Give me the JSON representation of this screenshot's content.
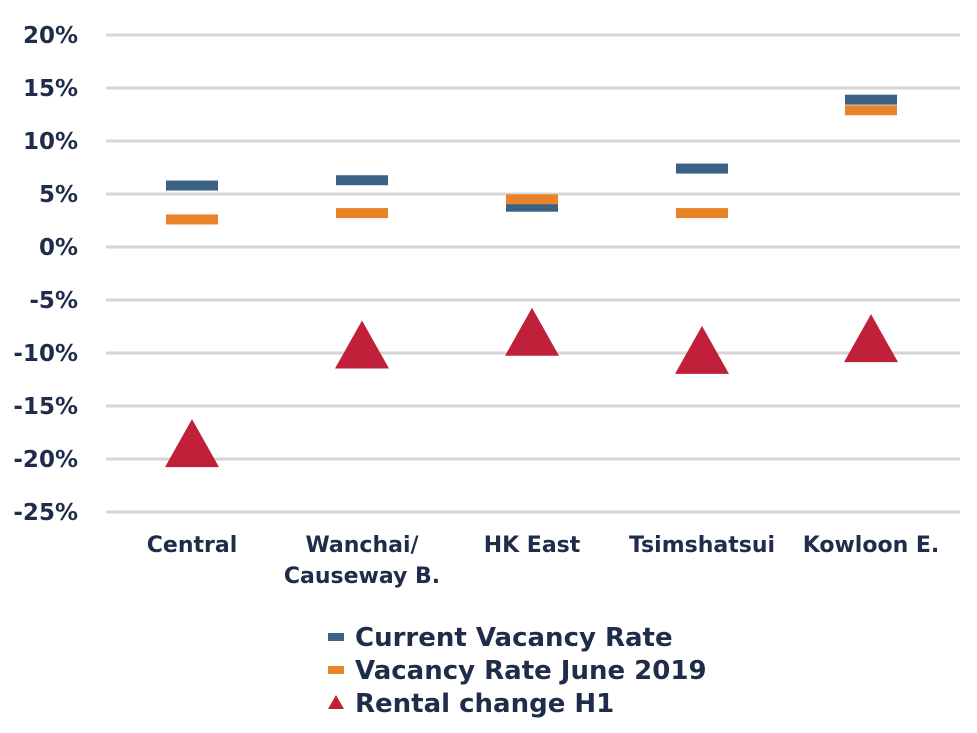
{
  "chart_data": {
    "type": "scatter",
    "categories": [
      [
        "Central"
      ],
      [
        "Wanchai/",
        "Causeway B."
      ],
      [
        "HK East"
      ],
      [
        "Tsimshatsui"
      ],
      [
        "Kowloon E."
      ]
    ],
    "series": [
      {
        "name": "Current Vacancy Rate",
        "marker": "dash",
        "color": "#3b6286",
        "values": [
          5.8,
          6.3,
          3.8,
          7.4,
          13.9
        ]
      },
      {
        "name": "Vacancy Rate June 2019",
        "marker": "dash",
        "color": "#e8832a",
        "values": [
          2.6,
          3.2,
          4.5,
          3.2,
          12.9
        ]
      },
      {
        "name": "Rental change H1",
        "marker": "triangle",
        "color": "#c0203a",
        "values": [
          -18.5,
          -9.2,
          -8.0,
          -9.7,
          -8.6
        ]
      }
    ],
    "yticks": [
      "20%",
      "15%",
      "10%",
      "5%",
      "0%",
      "-5%",
      "-10%",
      "-15%",
      "-20%",
      "-25%"
    ],
    "ytick_values": [
      20,
      15,
      10,
      5,
      0,
      -5,
      -10,
      -15,
      -20,
      -25
    ],
    "ylim": [
      -25,
      20
    ],
    "grid": true,
    "legend_position": "bottom"
  }
}
